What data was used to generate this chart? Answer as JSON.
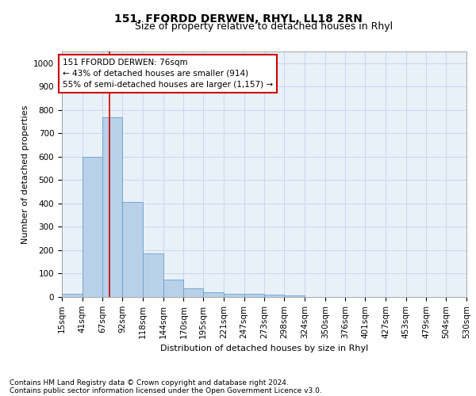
{
  "title": "151, FFORDD DERWEN, RHYL, LL18 2RN",
  "subtitle": "Size of property relative to detached houses in Rhyl",
  "xlabel": "Distribution of detached houses by size in Rhyl",
  "ylabel": "Number of detached properties",
  "footer1": "Contains HM Land Registry data © Crown copyright and database right 2024.",
  "footer2": "Contains public sector information licensed under the Open Government Licence v3.0.",
  "bar_color": "#b8d0e8",
  "bar_edge_color": "#6aa0cc",
  "vline_color": "#cc0000",
  "vline_x": 76,
  "annotation_text": "151 FFORDD DERWEN: 76sqm\n← 43% of detached houses are smaller (914)\n55% of semi-detached houses are larger (1,157) →",
  "annotation_box_color": "#cc0000",
  "bin_edges": [
    15,
    41,
    67,
    92,
    118,
    144,
    170,
    195,
    221,
    247,
    273,
    298,
    324,
    350,
    376,
    401,
    427,
    453,
    479,
    504,
    530
  ],
  "bar_heights": [
    15,
    600,
    770,
    405,
    185,
    75,
    38,
    20,
    15,
    12,
    10,
    8,
    0,
    0,
    0,
    0,
    0,
    0,
    0,
    0
  ],
  "ylim": [
    0,
    1050
  ],
  "yticks": [
    0,
    100,
    200,
    300,
    400,
    500,
    600,
    700,
    800,
    900,
    1000
  ],
  "xtick_labels": [
    "15sqm",
    "41sqm",
    "67sqm",
    "92sqm",
    "118sqm",
    "144sqm",
    "170sqm",
    "195sqm",
    "221sqm",
    "247sqm",
    "273sqm",
    "298sqm",
    "324sqm",
    "350sqm",
    "376sqm",
    "401sqm",
    "427sqm",
    "453sqm",
    "479sqm",
    "504sqm",
    "530sqm"
  ],
  "title_fontsize": 10,
  "subtitle_fontsize": 9,
  "label_fontsize": 8,
  "tick_fontsize": 7.5,
  "annotation_fontsize": 7.5,
  "footer_fontsize": 6.5,
  "grid_color": "#c8d8ea",
  "bg_color": "#e8f0f8"
}
